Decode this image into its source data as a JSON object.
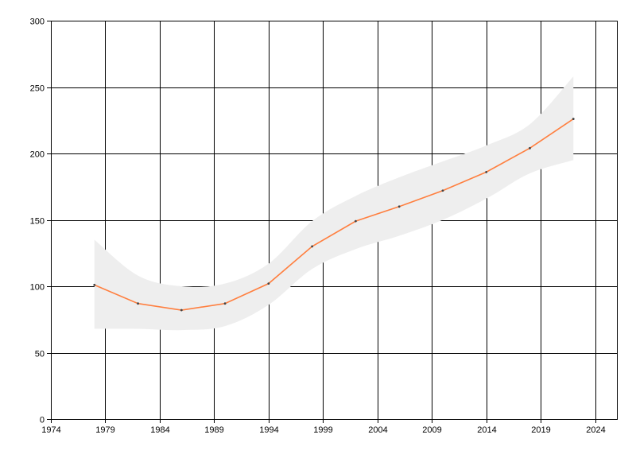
{
  "chart_data": {
    "type": "line",
    "title": "",
    "xlabel": "",
    "ylabel": "",
    "xlim": [
      1974,
      2026
    ],
    "ylim": [
      0,
      300
    ],
    "x_ticks": [
      1974,
      1979,
      1984,
      1989,
      1994,
      1999,
      2004,
      2009,
      2014,
      2019,
      2024
    ],
    "y_ticks": [
      0,
      50,
      100,
      150,
      200,
      250,
      300
    ],
    "grid": true,
    "legend": "none",
    "series": [
      {
        "x": [
          1978,
          1982,
          1986,
          1990,
          1994,
          1998,
          2002,
          2006,
          2010,
          2014,
          2018,
          2022
        ],
        "y": [
          101,
          87,
          82,
          87,
          102,
          130,
          149,
          160,
          172,
          186,
          204,
          226
        ],
        "upper": [
          135,
          108,
          100,
          102,
          117,
          149,
          168,
          182,
          194,
          206,
          222,
          258
        ],
        "lower": [
          68,
          68,
          67,
          70,
          86,
          113,
          128,
          138,
          150,
          166,
          185,
          195
        ],
        "color": "#ff7f3f",
        "band_color": "#eeeeee",
        "marker_color": "#444444"
      }
    ]
  }
}
